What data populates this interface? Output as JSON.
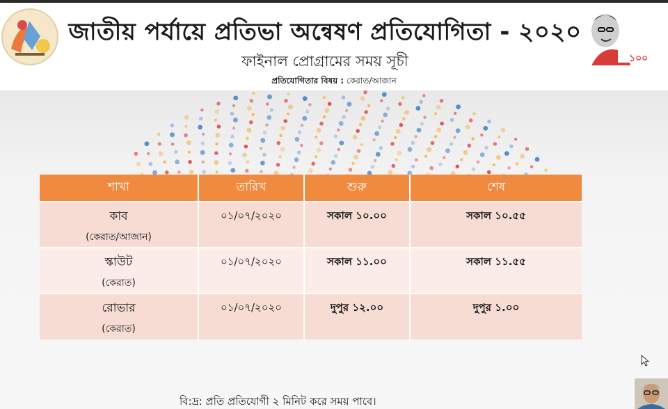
{
  "header": {
    "title": "জাতীয় পর্যায়ে প্রতিভা অন্বেষণ প্রতিযোগিতা - ২০২০",
    "subtitle": "ফাইনাল প্রোগ্রামের সময় সূচী",
    "subject_label": "প্রতিযোগিতার বিষয় :",
    "subject_value": "কেরাত/আজান",
    "right_logo_text": "১০০"
  },
  "schedule": {
    "columns": [
      "শাখা",
      "তারিখ",
      "শুরু",
      "শেষ"
    ],
    "rows": [
      {
        "branch": "কাব",
        "category": "(কেরাত/আজান)",
        "date": "০১/০৭/২০২০",
        "start": "সকাল ১০.০০",
        "end": "সকাল ১০.৫৫"
      },
      {
        "branch": "স্কাউট",
        "category": "(কেরাত)",
        "date": "০১/০৭/২০২০",
        "start": "সকাল ১১.০০",
        "end": "সকাল ১১.৫৫"
      },
      {
        "branch": "রোভার",
        "category": "(কেরাত)",
        "date": "০১/০৭/২০২০",
        "start": "দুপুর  ১২.০০",
        "end": "দুপুর ১.০০"
      }
    ]
  },
  "footnote": "বি:দ্র: প্রতি প্রতিযোগী ২ মিনিট করে সময় পাবে।",
  "colors": {
    "header_row": "#ef8a3e",
    "row_odd": "#f6dcd3",
    "row_even": "#fbecea",
    "dots": [
      "#e0393e",
      "#3b7dc4",
      "#f2b233",
      "#9bb7de",
      "#f1c27a",
      "#e46a6f"
    ]
  },
  "icons": {
    "left_logo": "scout-emblem-icon",
    "right_logo": "mujib-borsho-logo-icon",
    "cursor": "mouse-pointer-icon",
    "participant": "webcam-thumbnail"
  }
}
